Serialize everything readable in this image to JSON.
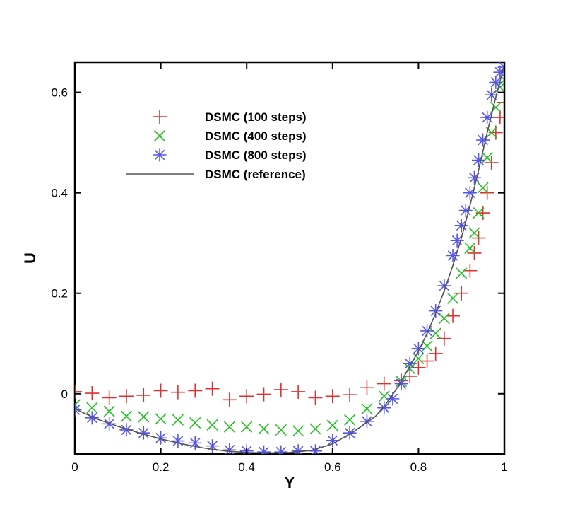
{
  "chart_data": {
    "type": "scatter",
    "title": "",
    "xlabel": "Y",
    "ylabel": "U",
    "xlim": [
      0,
      1
    ],
    "ylim": [
      -0.12,
      0.66
    ],
    "xticks": [
      0,
      0.2,
      0.4,
      0.6,
      0.8,
      1
    ],
    "xtick_labels": [
      "0",
      "0.2",
      "0.4",
      "0.6",
      "0.8",
      "1"
    ],
    "yticks": [
      0,
      0.2,
      0.4,
      0.6
    ],
    "ytick_labels": [
      "0",
      "0.2",
      "0.4",
      "0.6"
    ],
    "grid": false,
    "legend_position": "top-left",
    "series": [
      {
        "name": "DSMC (100 steps)",
        "marker": "plus",
        "color": "#e03030",
        "x": [
          0,
          0.04,
          0.08,
          0.12,
          0.16,
          0.2,
          0.24,
          0.28,
          0.32,
          0.36,
          0.4,
          0.44,
          0.48,
          0.52,
          0.56,
          0.6,
          0.64,
          0.68,
          0.72,
          0.76,
          0.78,
          0.8,
          0.82,
          0.84,
          0.86,
          0.88,
          0.9,
          0.92,
          0.93,
          0.94,
          0.95,
          0.96,
          0.97,
          0.98,
          0.99,
          1.0
        ],
        "y": [
          0.004,
          0.001,
          -0.008,
          -0.005,
          -0.003,
          0.006,
          0.003,
          0.006,
          0.01,
          -0.012,
          -0.005,
          -0.001,
          0.008,
          0.004,
          -0.008,
          -0.005,
          -0.002,
          0.012,
          0.02,
          0.026,
          0.035,
          0.052,
          0.065,
          0.08,
          0.11,
          0.155,
          0.2,
          0.245,
          0.28,
          0.31,
          0.36,
          0.4,
          0.46,
          0.52,
          0.55,
          0.58
        ]
      },
      {
        "name": "DSMC (400 steps)",
        "marker": "x",
        "color": "#20c020",
        "x": [
          0,
          0.04,
          0.08,
          0.12,
          0.16,
          0.2,
          0.24,
          0.28,
          0.32,
          0.36,
          0.4,
          0.44,
          0.48,
          0.52,
          0.56,
          0.6,
          0.64,
          0.68,
          0.72,
          0.76,
          0.78,
          0.8,
          0.82,
          0.84,
          0.86,
          0.88,
          0.9,
          0.92,
          0.93,
          0.94,
          0.95,
          0.96,
          0.97,
          0.98,
          0.99,
          1.0
        ],
        "y": [
          -0.022,
          -0.028,
          -0.035,
          -0.045,
          -0.046,
          -0.05,
          -0.052,
          -0.058,
          -0.062,
          -0.066,
          -0.066,
          -0.07,
          -0.072,
          -0.074,
          -0.07,
          -0.063,
          -0.052,
          -0.03,
          -0.005,
          0.025,
          0.05,
          0.07,
          0.095,
          0.12,
          0.15,
          0.19,
          0.24,
          0.29,
          0.32,
          0.36,
          0.41,
          0.47,
          0.52,
          0.57,
          0.61,
          0.625
        ]
      },
      {
        "name": "DSMC (800 steps)",
        "marker": "star",
        "color": "#5555ee",
        "x": [
          0,
          0.04,
          0.08,
          0.12,
          0.16,
          0.2,
          0.24,
          0.28,
          0.32,
          0.36,
          0.4,
          0.44,
          0.48,
          0.52,
          0.56,
          0.6,
          0.64,
          0.68,
          0.72,
          0.74,
          0.76,
          0.78,
          0.8,
          0.82,
          0.84,
          0.86,
          0.88,
          0.89,
          0.9,
          0.91,
          0.92,
          0.93,
          0.94,
          0.95,
          0.96,
          0.97,
          0.98,
          0.99,
          1.0
        ],
        "y": [
          -0.032,
          -0.048,
          -0.06,
          -0.072,
          -0.078,
          -0.088,
          -0.094,
          -0.098,
          -0.104,
          -0.112,
          -0.114,
          -0.116,
          -0.116,
          -0.114,
          -0.114,
          -0.093,
          -0.078,
          -0.055,
          -0.028,
          -0.01,
          0.02,
          0.06,
          0.09,
          0.125,
          0.165,
          0.215,
          0.275,
          0.305,
          0.335,
          0.365,
          0.4,
          0.43,
          0.465,
          0.505,
          0.55,
          0.595,
          0.62,
          0.64,
          0.65
        ]
      },
      {
        "name": "DSMC (reference)",
        "marker": "line",
        "color": "#555555",
        "x": [
          0,
          0.05,
          0.1,
          0.15,
          0.2,
          0.25,
          0.3,
          0.35,
          0.4,
          0.45,
          0.5,
          0.55,
          0.6,
          0.65,
          0.7,
          0.72,
          0.74,
          0.76,
          0.78,
          0.8,
          0.82,
          0.84,
          0.86,
          0.88,
          0.9,
          0.92,
          0.94,
          0.96,
          0.98,
          1.0
        ],
        "y": [
          -0.03,
          -0.05,
          -0.065,
          -0.078,
          -0.09,
          -0.1,
          -0.108,
          -0.114,
          -0.117,
          -0.118,
          -0.117,
          -0.113,
          -0.1,
          -0.075,
          -0.045,
          -0.025,
          -0.002,
          0.025,
          0.055,
          0.085,
          0.12,
          0.16,
          0.205,
          0.255,
          0.31,
          0.375,
          0.445,
          0.52,
          0.59,
          0.655
        ]
      }
    ]
  }
}
